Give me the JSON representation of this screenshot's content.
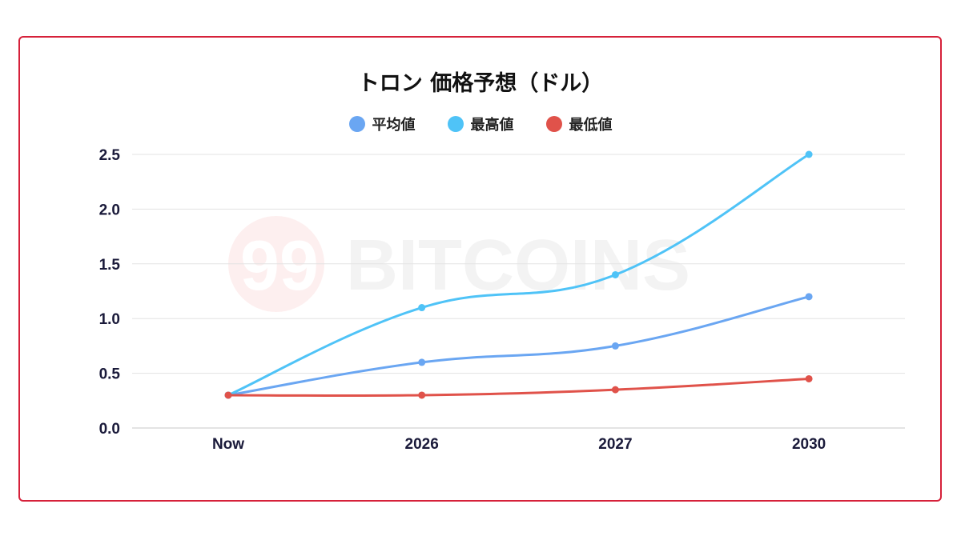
{
  "chart_data": {
    "type": "line",
    "title": "トロン 価格予想（ドル）",
    "categories": [
      "Now",
      "2026",
      "2027",
      "2030"
    ],
    "series": [
      {
        "name": "平均値",
        "color": "#6aa6f2",
        "values": [
          0.3,
          0.6,
          0.75,
          1.2
        ]
      },
      {
        "name": "最高値",
        "color": "#4fc3f7",
        "values": [
          0.3,
          1.1,
          1.4,
          2.5
        ]
      },
      {
        "name": "最低値",
        "color": "#e0524a",
        "values": [
          0.3,
          0.3,
          0.35,
          0.45
        ]
      }
    ],
    "ylim": [
      0,
      2.5
    ],
    "yticks": [
      "0.0",
      "0.5",
      "1.0",
      "1.5",
      "2.0",
      "2.5"
    ],
    "grid": true,
    "legend": "top",
    "border_color": "#d6213a",
    "watermark": "99 BITCOINS"
  }
}
